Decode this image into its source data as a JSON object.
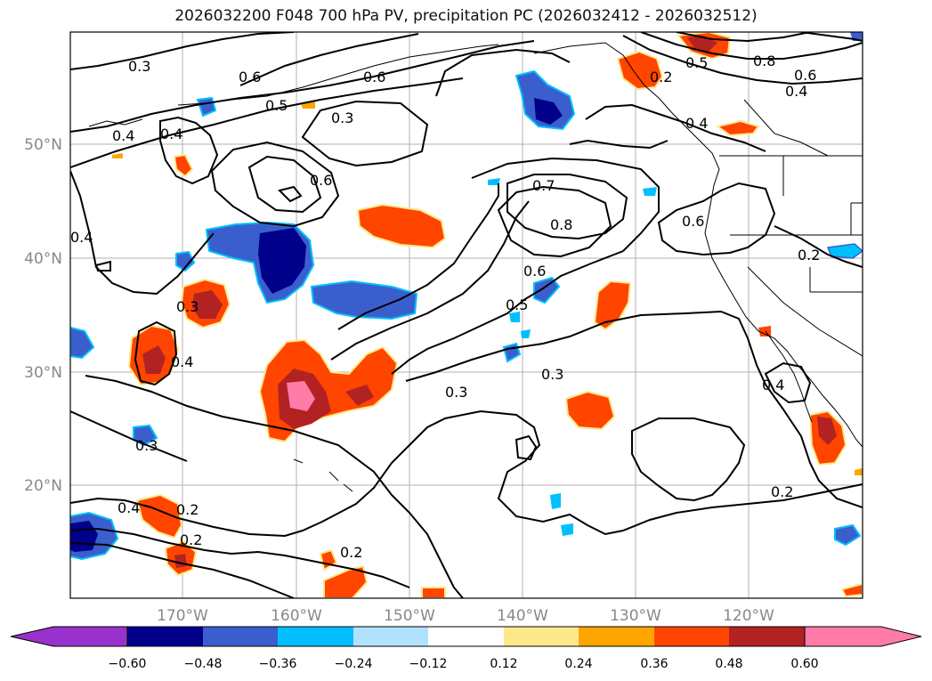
{
  "title": "2026032200 F048 700 hPa PV, precipitation PC (2026032412 - 2026032512)",
  "lat_labels": [
    "50°N",
    "40°N",
    "30°N",
    "20°N"
  ],
  "lon_labels": [
    "170°W",
    "160°W",
    "150°W",
    "140°W",
    "130°W",
    "120°W"
  ],
  "contour_labels": [
    "0.3",
    "0.6",
    "0.6",
    "0.5",
    "0.3",
    "0.4",
    "0.4",
    "0.6",
    "0.7",
    "0.8",
    "0.6",
    "0.5",
    "0.3",
    "0.3",
    "0.3",
    "0.4",
    "0.8",
    "0.6",
    "0.4",
    "0.4",
    "0.6",
    "0.2",
    "0.4",
    "0.2",
    "0.2",
    "0.4",
    "0.2",
    "0.2",
    "0.3",
    "0.4",
    "0.5",
    "0.2"
  ],
  "colorbar": {
    "ticks": [
      "−0.60",
      "−0.48",
      "−0.36",
      "−0.24",
      "−0.12",
      "0.12",
      "0.24",
      "0.36",
      "0.48",
      "0.60"
    ],
    "colors": [
      "#9932cc",
      "#00008b",
      "#3a5fcd",
      "#00bfff",
      "#b0e2ff",
      "#ffffff",
      "#ffe88a",
      "#ffa500",
      "#ff4500",
      "#b22222",
      "#ff7ba9"
    ]
  },
  "palette": {
    "dark_blue": "#00008b",
    "blue": "#3a5fcd",
    "light_blue": "#00bfff",
    "pale_blue": "#b0e2ff",
    "yellow": "#ffe88a",
    "orange": "#ffa500",
    "red_orange": "#ff4500",
    "dark_red": "#b22222",
    "pink": "#ff7ba9"
  }
}
